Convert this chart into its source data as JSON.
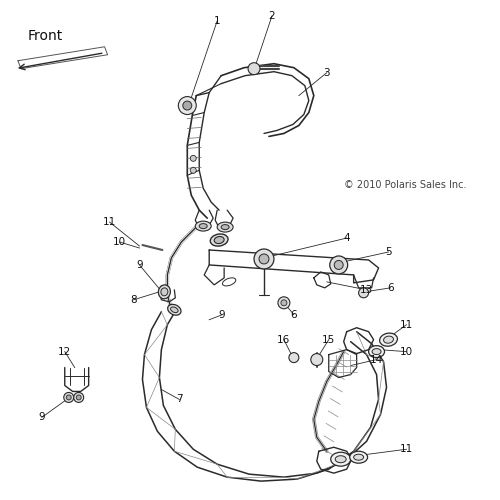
{
  "background_color": "#ffffff",
  "copyright_text": "© 2010 Polaris Sales Inc.",
  "line_color": "#2a2a2a",
  "label_color": "#111111",
  "label_fontsize": 7.5,
  "front_fontsize": 10
}
